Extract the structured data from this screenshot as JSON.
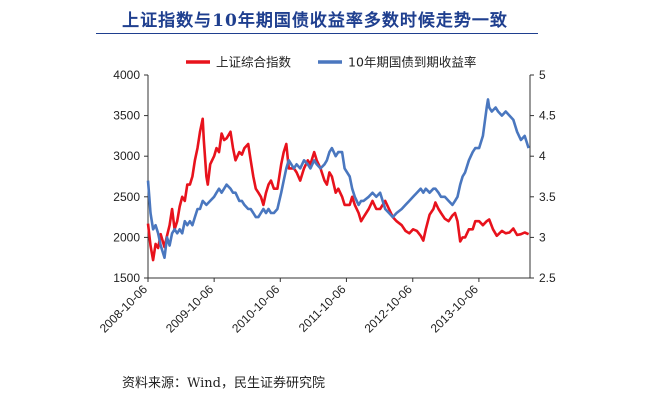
{
  "header": {
    "title": "上证指数与10年期国债收益率多数时候走势一致"
  },
  "footer": {
    "source": "资料来源：Wind，民生证券研究院"
  },
  "chart_data": {
    "type": "line",
    "title": "上证指数与10年期国债收益率多数时候走势一致",
    "legend_placement": "top",
    "grid": false,
    "colors": {
      "shanghai": "#e8121c",
      "bond": "#4a77bf"
    },
    "x_axis": {
      "type": "date",
      "ticks": [
        "2008-10-06",
        "2009-10-06",
        "2010-10-06",
        "2011-10-06",
        "2012-10-06",
        "2013-10-06"
      ],
      "range": [
        "2008-10-06",
        "2014-07-15"
      ]
    },
    "y_left": {
      "ticks": [
        "1500",
        "2000",
        "2500",
        "3000",
        "3500",
        "4000"
      ],
      "ylim": [
        1500,
        4000
      ]
    },
    "y_right": {
      "ticks": [
        "2.5",
        "3",
        "3.5",
        "4",
        "4.5",
        "5"
      ],
      "ylim": [
        2.5,
        5
      ]
    },
    "series": [
      {
        "name": "上证综合指数",
        "axis": "left",
        "points": [
          [
            "2008-10-06",
            2170
          ],
          [
            "2008-10-20",
            1900
          ],
          [
            "2008-11-03",
            1720
          ],
          [
            "2008-11-17",
            1920
          ],
          [
            "2008-12-01",
            1870
          ],
          [
            "2008-12-15",
            2040
          ],
          [
            "2009-01-05",
            1880
          ],
          [
            "2009-01-19",
            2020
          ],
          [
            "2009-02-02",
            2150
          ],
          [
            "2009-02-16",
            2350
          ],
          [
            "2009-03-02",
            2100
          ],
          [
            "2009-03-16",
            2200
          ],
          [
            "2009-03-30",
            2380
          ],
          [
            "2009-04-13",
            2500
          ],
          [
            "2009-04-27",
            2450
          ],
          [
            "2009-05-11",
            2650
          ],
          [
            "2009-05-25",
            2650
          ],
          [
            "2009-06-08",
            2750
          ],
          [
            "2009-06-22",
            2950
          ],
          [
            "2009-07-06",
            3100
          ],
          [
            "2009-07-20",
            3300
          ],
          [
            "2009-08-04",
            3460
          ],
          [
            "2009-08-10",
            3200
          ],
          [
            "2009-08-24",
            2750
          ],
          [
            "2009-09-01",
            2650
          ],
          [
            "2009-09-14",
            2900
          ],
          [
            "2009-10-06",
            3000
          ],
          [
            "2009-10-19",
            3100
          ],
          [
            "2009-11-02",
            3050
          ],
          [
            "2009-11-16",
            3280
          ],
          [
            "2009-11-30",
            3200
          ],
          [
            "2009-12-14",
            3220
          ],
          [
            "2010-01-04",
            3300
          ],
          [
            "2010-01-18",
            3100
          ],
          [
            "2010-02-01",
            2950
          ],
          [
            "2010-02-22",
            3050
          ],
          [
            "2010-03-08",
            3020
          ],
          [
            "2010-03-22",
            3100
          ],
          [
            "2010-04-12",
            3150
          ],
          [
            "2010-04-26",
            2950
          ],
          [
            "2010-05-10",
            2750
          ],
          [
            "2010-05-24",
            2600
          ],
          [
            "2010-06-07",
            2550
          ],
          [
            "2010-06-21",
            2500
          ],
          [
            "2010-07-05",
            2400
          ],
          [
            "2010-07-19",
            2550
          ],
          [
            "2010-08-02",
            2650
          ],
          [
            "2010-08-16",
            2700
          ],
          [
            "2010-09-01",
            2600
          ],
          [
            "2010-09-20",
            2600
          ],
          [
            "2010-10-11",
            2900
          ],
          [
            "2010-10-25",
            3050
          ],
          [
            "2010-11-08",
            3150
          ],
          [
            "2010-11-22",
            2850
          ],
          [
            "2010-12-06",
            2850
          ],
          [
            "2010-12-20",
            2850
          ],
          [
            "2011-01-04",
            2800
          ],
          [
            "2011-01-24",
            2700
          ],
          [
            "2011-02-14",
            2850
          ],
          [
            "2011-03-07",
            2950
          ],
          [
            "2011-03-21",
            2900
          ],
          [
            "2011-04-11",
            3050
          ],
          [
            "2011-04-25",
            2950
          ],
          [
            "2011-05-16",
            2850
          ],
          [
            "2011-06-07",
            2700
          ],
          [
            "2011-06-20",
            2650
          ],
          [
            "2011-07-04",
            2800
          ],
          [
            "2011-07-18",
            2750
          ],
          [
            "2011-08-08",
            2550
          ],
          [
            "2011-08-22",
            2600
          ],
          [
            "2011-09-12",
            2500
          ],
          [
            "2011-09-26",
            2400
          ],
          [
            "2011-10-24",
            2400
          ],
          [
            "2011-11-07",
            2500
          ],
          [
            "2011-11-21",
            2400
          ],
          [
            "2011-12-12",
            2300
          ],
          [
            "2011-12-26",
            2200
          ],
          [
            "2012-01-09",
            2250
          ],
          [
            "2012-02-06",
            2350
          ],
          [
            "2012-02-27",
            2450
          ],
          [
            "2012-03-19",
            2350
          ],
          [
            "2012-04-09",
            2350
          ],
          [
            "2012-05-07",
            2450
          ],
          [
            "2012-05-28",
            2350
          ],
          [
            "2012-06-18",
            2250
          ],
          [
            "2012-07-09",
            2200
          ],
          [
            "2012-08-06",
            2150
          ],
          [
            "2012-08-27",
            2080
          ],
          [
            "2012-09-17",
            2050
          ],
          [
            "2012-10-08",
            2100
          ],
          [
            "2012-10-29",
            2080
          ],
          [
            "2012-11-19",
            2020
          ],
          [
            "2012-12-03",
            1960
          ],
          [
            "2012-12-17",
            2100
          ],
          [
            "2013-01-07",
            2280
          ],
          [
            "2013-01-28",
            2350
          ],
          [
            "2013-02-08",
            2430
          ],
          [
            "2013-02-25",
            2350
          ],
          [
            "2013-03-11",
            2300
          ],
          [
            "2013-04-01",
            2230
          ],
          [
            "2013-04-22",
            2200
          ],
          [
            "2013-05-13",
            2270
          ],
          [
            "2013-05-27",
            2300
          ],
          [
            "2013-06-10",
            2200
          ],
          [
            "2013-06-25",
            1950
          ],
          [
            "2013-07-08",
            2000
          ],
          [
            "2013-07-22",
            2000
          ],
          [
            "2013-08-12",
            2100
          ],
          [
            "2013-09-02",
            2100
          ],
          [
            "2013-09-16",
            2200
          ],
          [
            "2013-10-07",
            2200
          ],
          [
            "2013-10-28",
            2150
          ],
          [
            "2013-11-18",
            2200
          ],
          [
            "2013-12-02",
            2220
          ],
          [
            "2013-12-23",
            2100
          ],
          [
            "2014-01-13",
            2020
          ],
          [
            "2014-02-10",
            2080
          ],
          [
            "2014-03-03",
            2050
          ],
          [
            "2014-03-24",
            2060
          ],
          [
            "2014-04-14",
            2110
          ],
          [
            "2014-05-05",
            2030
          ],
          [
            "2014-05-26",
            2040
          ],
          [
            "2014-06-16",
            2060
          ],
          [
            "2014-07-07",
            2040
          ]
        ]
      },
      {
        "name": "10年期国债到期收益率",
        "axis": "right",
        "points": [
          [
            "2008-10-06",
            3.7
          ],
          [
            "2008-10-13",
            3.5
          ],
          [
            "2008-10-20",
            3.3
          ],
          [
            "2008-11-03",
            3.1
          ],
          [
            "2008-11-17",
            3.15
          ],
          [
            "2008-12-01",
            3.05
          ],
          [
            "2008-12-15",
            2.9
          ],
          [
            "2009-01-05",
            2.75
          ],
          [
            "2009-01-19",
            3.0
          ],
          [
            "2009-02-02",
            2.9
          ],
          [
            "2009-02-16",
            3.05
          ],
          [
            "2009-03-02",
            3.1
          ],
          [
            "2009-03-16",
            3.05
          ],
          [
            "2009-03-30",
            3.1
          ],
          [
            "2009-04-13",
            3.05
          ],
          [
            "2009-04-27",
            3.2
          ],
          [
            "2009-05-11",
            3.15
          ],
          [
            "2009-05-25",
            3.2
          ],
          [
            "2009-06-08",
            3.15
          ],
          [
            "2009-06-22",
            3.25
          ],
          [
            "2009-07-06",
            3.35
          ],
          [
            "2009-07-20",
            3.35
          ],
          [
            "2009-08-04",
            3.45
          ],
          [
            "2009-08-24",
            3.4
          ],
          [
            "2009-09-14",
            3.45
          ],
          [
            "2009-10-06",
            3.5
          ],
          [
            "2009-10-19",
            3.55
          ],
          [
            "2009-11-02",
            3.6
          ],
          [
            "2009-11-16",
            3.55
          ],
          [
            "2009-11-30",
            3.6
          ],
          [
            "2009-12-14",
            3.65
          ],
          [
            "2010-01-04",
            3.6
          ],
          [
            "2010-01-18",
            3.55
          ],
          [
            "2010-02-01",
            3.55
          ],
          [
            "2010-02-22",
            3.45
          ],
          [
            "2010-03-08",
            3.45
          ],
          [
            "2010-03-22",
            3.4
          ],
          [
            "2010-04-12",
            3.35
          ],
          [
            "2010-04-26",
            3.35
          ],
          [
            "2010-05-10",
            3.3
          ],
          [
            "2010-05-24",
            3.25
          ],
          [
            "2010-06-07",
            3.25
          ],
          [
            "2010-06-21",
            3.3
          ],
          [
            "2010-07-05",
            3.35
          ],
          [
            "2010-07-19",
            3.3
          ],
          [
            "2010-08-02",
            3.35
          ],
          [
            "2010-08-16",
            3.3
          ],
          [
            "2010-09-01",
            3.3
          ],
          [
            "2010-09-20",
            3.35
          ],
          [
            "2010-10-11",
            3.55
          ],
          [
            "2010-10-25",
            3.7
          ],
          [
            "2010-11-08",
            3.85
          ],
          [
            "2010-11-22",
            3.95
          ],
          [
            "2010-12-06",
            3.9
          ],
          [
            "2010-12-20",
            3.85
          ],
          [
            "2011-01-04",
            3.9
          ],
          [
            "2011-01-24",
            3.85
          ],
          [
            "2011-02-14",
            3.95
          ],
          [
            "2011-03-07",
            3.9
          ],
          [
            "2011-03-21",
            3.85
          ],
          [
            "2011-04-11",
            3.95
          ],
          [
            "2011-04-25",
            3.9
          ],
          [
            "2011-05-16",
            3.85
          ],
          [
            "2011-06-07",
            3.9
          ],
          [
            "2011-06-20",
            3.95
          ],
          [
            "2011-07-04",
            4.05
          ],
          [
            "2011-07-18",
            4.1
          ],
          [
            "2011-08-08",
            4.0
          ],
          [
            "2011-08-22",
            4.05
          ],
          [
            "2011-09-12",
            4.05
          ],
          [
            "2011-09-26",
            3.85
          ],
          [
            "2011-10-24",
            3.75
          ],
          [
            "2011-11-07",
            3.6
          ],
          [
            "2011-11-21",
            3.5
          ],
          [
            "2011-12-12",
            3.4
          ],
          [
            "2011-12-26",
            3.45
          ],
          [
            "2012-01-09",
            3.45
          ],
          [
            "2012-02-06",
            3.5
          ],
          [
            "2012-02-27",
            3.55
          ],
          [
            "2012-03-19",
            3.5
          ],
          [
            "2012-04-09",
            3.55
          ],
          [
            "2012-05-07",
            3.35
          ],
          [
            "2012-05-28",
            3.3
          ],
          [
            "2012-06-18",
            3.25
          ],
          [
            "2012-07-09",
            3.3
          ],
          [
            "2012-08-06",
            3.35
          ],
          [
            "2012-08-27",
            3.4
          ],
          [
            "2012-09-17",
            3.45
          ],
          [
            "2012-10-08",
            3.5
          ],
          [
            "2012-10-29",
            3.55
          ],
          [
            "2012-11-19",
            3.6
          ],
          [
            "2012-12-03",
            3.55
          ],
          [
            "2012-12-17",
            3.6
          ],
          [
            "2013-01-07",
            3.55
          ],
          [
            "2013-01-28",
            3.6
          ],
          [
            "2013-02-08",
            3.6
          ],
          [
            "2013-02-25",
            3.55
          ],
          [
            "2013-03-11",
            3.5
          ],
          [
            "2013-04-01",
            3.5
          ],
          [
            "2013-04-22",
            3.45
          ],
          [
            "2013-05-13",
            3.4
          ],
          [
            "2013-05-27",
            3.45
          ],
          [
            "2013-06-10",
            3.5
          ],
          [
            "2013-06-25",
            3.65
          ],
          [
            "2013-07-08",
            3.75
          ],
          [
            "2013-07-22",
            3.8
          ],
          [
            "2013-08-12",
            3.95
          ],
          [
            "2013-09-02",
            4.05
          ],
          [
            "2013-09-16",
            4.1
          ],
          [
            "2013-10-07",
            4.1
          ],
          [
            "2013-10-28",
            4.25
          ],
          [
            "2013-11-18",
            4.6
          ],
          [
            "2013-11-25",
            4.7
          ],
          [
            "2013-12-02",
            4.6
          ],
          [
            "2013-12-16",
            4.55
          ],
          [
            "2014-01-06",
            4.6
          ],
          [
            "2014-01-20",
            4.55
          ],
          [
            "2014-02-10",
            4.5
          ],
          [
            "2014-03-03",
            4.55
          ],
          [
            "2014-03-24",
            4.5
          ],
          [
            "2014-04-14",
            4.45
          ],
          [
            "2014-05-05",
            4.3
          ],
          [
            "2014-05-26",
            4.2
          ],
          [
            "2014-06-16",
            4.25
          ],
          [
            "2014-07-07",
            4.1
          ]
        ]
      }
    ]
  }
}
